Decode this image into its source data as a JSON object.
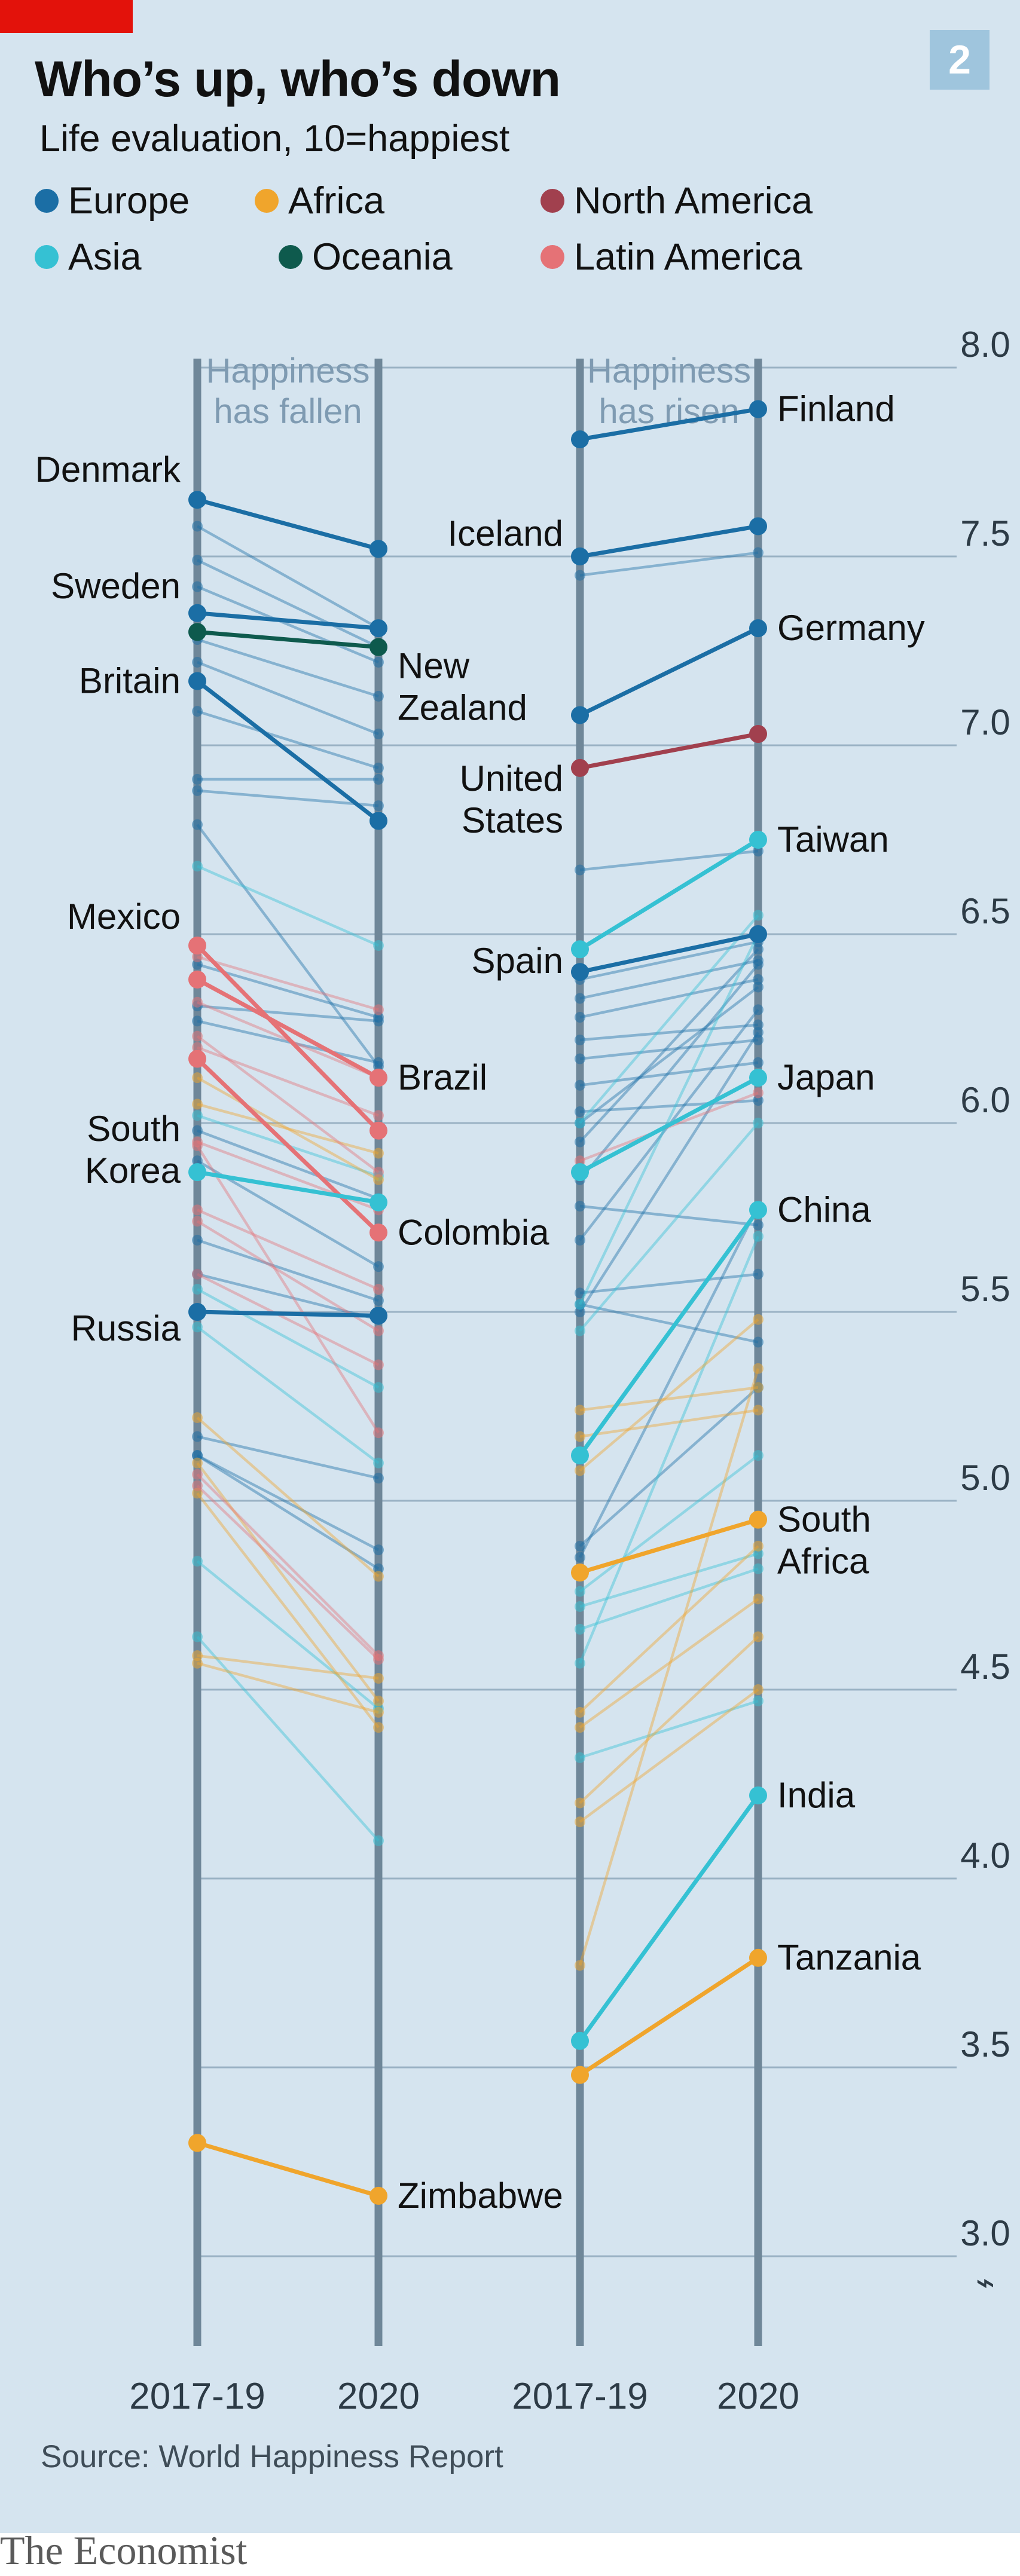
{
  "header": {
    "chart_number": "2",
    "title": "Who’s up, who’s down",
    "subtitle": "Life evaluation, 10=happiest"
  },
  "legend": [
    {
      "label": "Europe",
      "color": "#1b6ea5"
    },
    {
      "label": "Africa",
      "color": "#f0a52c"
    },
    {
      "label": "North America",
      "color": "#a1404e"
    },
    {
      "label": "Asia",
      "color": "#35c1d3"
    },
    {
      "label": "Oceania",
      "color": "#0e5a4d"
    },
    {
      "label": "Latin America",
      "color": "#e57276"
    }
  ],
  "source": "Source: World Happiness Report",
  "brand": "The Economist",
  "chart_data": {
    "type": "slope",
    "ylim": [
      3.0,
      8.0
    ],
    "y_ticks": [
      "8.0",
      "7.5",
      "7.0",
      "6.5",
      "6.0",
      "5.5",
      "5.0",
      "4.5",
      "4.0",
      "3.5",
      "3.0"
    ],
    "axis_break_symbol": "⌁",
    "x_labels": [
      "2017-19",
      "2020",
      "2017-19",
      "2020"
    ],
    "panels": [
      {
        "heading": [
          "Happiness",
          "has fallen"
        ],
        "highlighted": [
          {
            "name": [
              "Denmark"
            ],
            "region": "Europe",
            "values": [
              7.65,
              7.52
            ]
          },
          {
            "name": [
              "Sweden"
            ],
            "region": "Europe",
            "values": [
              7.35,
              7.31
            ]
          },
          {
            "name": [
              "New",
              "Zealand"
            ],
            "region": "Oceania",
            "values": [
              7.3,
              7.26
            ]
          },
          {
            "name": [
              "Britain"
            ],
            "region": "Europe",
            "values": [
              7.17,
              6.8
            ]
          },
          {
            "name": [
              "Mexico"
            ],
            "region": "Latin America",
            "values": [
              6.47,
              5.98
            ]
          },
          {
            "name": [
              "Brazil"
            ],
            "region": "Latin America",
            "values": [
              6.38,
              6.12
            ]
          },
          {
            "name": [
              "Colombia"
            ],
            "region": "Latin America",
            "values": [
              6.17,
              5.71
            ]
          },
          {
            "name": [
              "South",
              "Korea"
            ],
            "region": "Asia",
            "values": [
              5.87,
              5.79
            ]
          },
          {
            "name": [
              "Russia"
            ],
            "region": "Europe",
            "values": [
              5.5,
              5.49
            ]
          },
          {
            "name": [
              "Zimbabwe"
            ],
            "region": "Africa",
            "values": [
              3.3,
              3.16
            ]
          }
        ],
        "background": [
          {
            "region": "Europe",
            "values": [
              7.58,
              7.31
            ]
          },
          {
            "region": "Europe",
            "values": [
              7.49,
              7.26
            ]
          },
          {
            "region": "Europe",
            "values": [
              7.42,
              7.22
            ]
          },
          {
            "region": "Europe",
            "values": [
              7.28,
              7.13
            ]
          },
          {
            "region": "Europe",
            "values": [
              7.22,
              7.03
            ]
          },
          {
            "region": "Europe",
            "values": [
              7.09,
              6.94
            ]
          },
          {
            "region": "Europe",
            "values": [
              6.91,
              6.91
            ]
          },
          {
            "region": "Europe",
            "values": [
              6.88,
              6.84
            ]
          },
          {
            "region": "Europe",
            "values": [
              6.79,
              6.15
            ]
          },
          {
            "region": "Europe",
            "values": [
              6.42,
              6.28
            ]
          },
          {
            "region": "Europe",
            "values": [
              6.31,
              6.27
            ]
          },
          {
            "region": "Europe",
            "values": [
              6.27,
              6.16
            ]
          },
          {
            "region": "Europe",
            "values": [
              5.98,
              5.8
            ]
          },
          {
            "region": "Europe",
            "values": [
              5.9,
              5.62
            ]
          },
          {
            "region": "Europe",
            "values": [
              5.69,
              5.53
            ]
          },
          {
            "region": "Europe",
            "values": [
              5.6,
              5.48
            ]
          },
          {
            "region": "Europe",
            "values": [
              5.17,
              5.06
            ]
          },
          {
            "region": "Europe",
            "values": [
              5.12,
              4.87
            ]
          },
          {
            "region": "Europe",
            "values": [
              5.12,
              4.82
            ]
          },
          {
            "region": "Asia",
            "values": [
              6.68,
              6.47
            ]
          },
          {
            "region": "Asia",
            "values": [
              6.02,
              5.86
            ]
          },
          {
            "region": "Asia",
            "values": [
              5.56,
              5.3
            ]
          },
          {
            "region": "Asia",
            "values": [
              5.46,
              5.1
            ]
          },
          {
            "region": "Asia",
            "values": [
              4.84,
              4.45
            ]
          },
          {
            "region": "Asia",
            "values": [
              4.64,
              4.1
            ]
          },
          {
            "region": "Africa",
            "values": [
              6.12,
              5.85
            ]
          },
          {
            "region": "Africa",
            "values": [
              6.05,
              5.92
            ]
          },
          {
            "region": "Africa",
            "values": [
              5.22,
              4.8
            ]
          },
          {
            "region": "Africa",
            "values": [
              5.1,
              4.47
            ]
          },
          {
            "region": "Africa",
            "values": [
              5.02,
              4.4
            ]
          },
          {
            "region": "Africa",
            "values": [
              4.59,
              4.53
            ]
          },
          {
            "region": "Africa",
            "values": [
              4.57,
              4.44
            ]
          },
          {
            "region": "Latin America",
            "values": [
              6.44,
              6.3
            ]
          },
          {
            "region": "Latin America",
            "values": [
              6.32,
              6.12
            ]
          },
          {
            "region": "Latin America",
            "values": [
              6.23,
              5.87
            ]
          },
          {
            "region": "Latin America",
            "values": [
              6.2,
              6.02
            ]
          },
          {
            "region": "Latin America",
            "values": [
              5.95,
              5.77
            ]
          },
          {
            "region": "Latin America",
            "values": [
              5.77,
              5.56
            ]
          },
          {
            "region": "Latin America",
            "values": [
              5.74,
              5.45
            ]
          },
          {
            "region": "Latin America",
            "values": [
              5.6,
              5.36
            ]
          },
          {
            "region": "Latin America",
            "values": [
              5.07,
              4.59
            ]
          },
          {
            "region": "Latin America",
            "values": [
              5.04,
              4.58
            ]
          },
          {
            "region": "Latin America",
            "values": [
              5.94,
              5.18
            ]
          }
        ]
      },
      {
        "heading": [
          "Happiness",
          "has risen"
        ],
        "highlighted": [
          {
            "name": [
              "Finland"
            ],
            "region": "Europe",
            "values": [
              7.81,
              7.89
            ]
          },
          {
            "name": [
              "Iceland"
            ],
            "region": "Europe",
            "values": [
              7.5,
              7.58
            ]
          },
          {
            "name": [
              "Germany"
            ],
            "region": "Europe",
            "values": [
              7.08,
              7.31
            ]
          },
          {
            "name": [
              "United",
              "States"
            ],
            "region": "North America",
            "values": [
              6.94,
              7.03
            ]
          },
          {
            "name": [
              "Taiwan"
            ],
            "region": "Asia",
            "values": [
              6.46,
              6.75
            ]
          },
          {
            "name": [
              "Spain"
            ],
            "region": "Europe",
            "values": [
              6.4,
              6.5
            ]
          },
          {
            "name": [
              "Japan"
            ],
            "region": "Asia",
            "values": [
              5.87,
              6.12
            ]
          },
          {
            "name": [
              "China"
            ],
            "region": "Asia",
            "values": [
              5.12,
              5.77
            ]
          },
          {
            "name": [
              "South",
              "Africa"
            ],
            "region": "Africa",
            "values": [
              4.81,
              4.95
            ]
          },
          {
            "name": [
              "India"
            ],
            "region": "Asia",
            "values": [
              3.57,
              4.22
            ]
          },
          {
            "name": [
              "Tanzania"
            ],
            "region": "Africa",
            "values": [
              3.48,
              3.79
            ]
          }
        ],
        "background": [
          {
            "region": "Europe",
            "values": [
              7.45,
              7.51
            ]
          },
          {
            "region": "Europe",
            "values": [
              6.67,
              6.72
            ]
          },
          {
            "region": "Europe",
            "values": [
              6.38,
              6.48
            ]
          },
          {
            "region": "Europe",
            "values": [
              6.33,
              6.43
            ]
          },
          {
            "region": "Europe",
            "values": [
              6.28,
              6.38
            ]
          },
          {
            "region": "Europe",
            "values": [
              6.22,
              6.26
            ]
          },
          {
            "region": "Europe",
            "values": [
              6.17,
              6.22
            ]
          },
          {
            "region": "Europe",
            "values": [
              6.1,
              6.16
            ]
          },
          {
            "region": "Europe",
            "values": [
              6.03,
              6.06
            ]
          },
          {
            "region": "Europe",
            "values": [
              6.0,
              6.36
            ]
          },
          {
            "region": "Europe",
            "values": [
              5.95,
              6.46
            ]
          },
          {
            "region": "Europe",
            "values": [
              5.85,
              6.42
            ]
          },
          {
            "region": "Europe",
            "values": [
              5.78,
              5.73
            ]
          },
          {
            "region": "Europe",
            "values": [
              5.69,
              6.3
            ]
          },
          {
            "region": "Europe",
            "values": [
              5.55,
              5.6
            ]
          },
          {
            "region": "Europe",
            "values": [
              5.52,
              5.42
            ]
          },
          {
            "region": "Europe",
            "values": [
              5.5,
              6.24
            ]
          },
          {
            "region": "Europe",
            "values": [
              4.88,
              5.3
            ]
          },
          {
            "region": "Europe",
            "values": [
              4.85,
              5.78
            ]
          },
          {
            "region": "Asia",
            "values": [
              6.0,
              6.55
            ]
          },
          {
            "region": "Asia",
            "values": [
              5.52,
              6.5
            ]
          },
          {
            "region": "Asia",
            "values": [
              5.45,
              6.0
            ]
          },
          {
            "region": "Asia",
            "values": [
              4.76,
              5.12
            ]
          },
          {
            "region": "Asia",
            "values": [
              4.72,
              4.86
            ]
          },
          {
            "region": "Asia",
            "values": [
              4.66,
              4.82
            ]
          },
          {
            "region": "Asia",
            "values": [
              4.57,
              5.7
            ]
          },
          {
            "region": "Asia",
            "values": [
              4.32,
              4.47
            ]
          },
          {
            "region": "Africa",
            "values": [
              5.24,
              5.3
            ]
          },
          {
            "region": "Africa",
            "values": [
              5.17,
              5.24
            ]
          },
          {
            "region": "Africa",
            "values": [
              5.08,
              5.48
            ]
          },
          {
            "region": "Africa",
            "values": [
              4.44,
              4.88
            ]
          },
          {
            "region": "Africa",
            "values": [
              4.4,
              4.74
            ]
          },
          {
            "region": "Africa",
            "values": [
              4.2,
              4.64
            ]
          },
          {
            "region": "Africa",
            "values": [
              4.15,
              4.5
            ]
          },
          {
            "region": "Africa",
            "values": [
              3.77,
              5.35
            ]
          },
          {
            "region": "Latin America",
            "values": [
              5.9,
              6.08
            ]
          }
        ]
      }
    ]
  }
}
